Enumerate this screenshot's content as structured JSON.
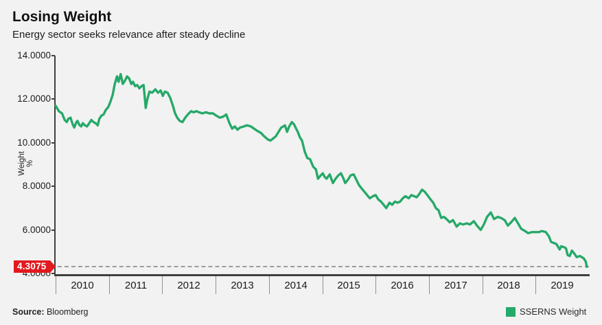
{
  "header": {
    "title": "Losing Weight",
    "subtitle": "Energy sector seeks relevance after steady decline"
  },
  "footer": {
    "source_label": "Source:",
    "source_value": "Bloomberg"
  },
  "legend": {
    "label": "SSERNS Weight"
  },
  "callout": {
    "value": "4.3075"
  },
  "colors": {
    "line": "#26a969",
    "callout_red": "#e2191f",
    "axis": "#3f3f3f",
    "background": "#f2f2f2",
    "dashed": "#9c9c9c"
  },
  "chart_data": {
    "type": "line",
    "title": "Losing Weight",
    "subtitle": "Energy sector seeks relevance after steady decline",
    "xlabel": "",
    "ylabel": "Weight %",
    "legend_position": "bottom-right",
    "grid": false,
    "x_range": [
      2010,
      2020
    ],
    "y_range": [
      4,
      14
    ],
    "y_ticks": [
      {
        "value": 14,
        "label": "14.0000"
      },
      {
        "value": 12,
        "label": "12.0000"
      },
      {
        "value": 10,
        "label": "10.0000"
      },
      {
        "value": 8,
        "label": "8.0000"
      },
      {
        "value": 6,
        "label": "6.0000"
      },
      {
        "value": 4,
        "label": "4.0000"
      }
    ],
    "x_ticks": [
      "2010",
      "2011",
      "2012",
      "2013",
      "2014",
      "2015",
      "2016",
      "2017",
      "2018",
      "2019"
    ],
    "last_value": 4.3075,
    "last_value_label": "4.3075",
    "series": [
      {
        "name": "SSERNS Weight",
        "points": [
          [
            2010.0,
            11.7
          ],
          [
            2010.06,
            11.45
          ],
          [
            2010.12,
            11.35
          ],
          [
            2010.17,
            11.05
          ],
          [
            2010.21,
            10.95
          ],
          [
            2010.24,
            11.1
          ],
          [
            2010.28,
            11.15
          ],
          [
            2010.32,
            10.85
          ],
          [
            2010.35,
            10.7
          ],
          [
            2010.39,
            10.95
          ],
          [
            2010.41,
            11.0
          ],
          [
            2010.45,
            10.8
          ],
          [
            2010.48,
            10.75
          ],
          [
            2010.51,
            10.9
          ],
          [
            2010.55,
            10.8
          ],
          [
            2010.59,
            10.75
          ],
          [
            2010.63,
            10.9
          ],
          [
            2010.67,
            11.05
          ],
          [
            2010.71,
            10.95
          ],
          [
            2010.75,
            10.9
          ],
          [
            2010.79,
            10.8
          ],
          [
            2010.82,
            11.1
          ],
          [
            2010.86,
            11.25
          ],
          [
            2010.9,
            11.3
          ],
          [
            2010.94,
            11.5
          ],
          [
            2010.99,
            11.65
          ],
          [
            2011.03,
            11.9
          ],
          [
            2011.07,
            12.2
          ],
          [
            2011.11,
            12.7
          ],
          [
            2011.15,
            13.05
          ],
          [
            2011.18,
            12.8
          ],
          [
            2011.22,
            13.15
          ],
          [
            2011.26,
            12.7
          ],
          [
            2011.3,
            12.85
          ],
          [
            2011.34,
            13.05
          ],
          [
            2011.38,
            12.95
          ],
          [
            2011.42,
            12.7
          ],
          [
            2011.45,
            12.8
          ],
          [
            2011.49,
            12.6
          ],
          [
            2011.53,
            12.65
          ],
          [
            2011.57,
            12.5
          ],
          [
            2011.61,
            12.6
          ],
          [
            2011.65,
            12.65
          ],
          [
            2011.69,
            11.6
          ],
          [
            2011.72,
            12.0
          ],
          [
            2011.76,
            12.35
          ],
          [
            2011.81,
            12.3
          ],
          [
            2011.87,
            12.45
          ],
          [
            2011.92,
            12.3
          ],
          [
            2011.97,
            12.4
          ],
          [
            2012.01,
            12.15
          ],
          [
            2012.05,
            12.35
          ],
          [
            2012.1,
            12.3
          ],
          [
            2012.15,
            12.05
          ],
          [
            2012.2,
            11.7
          ],
          [
            2012.24,
            11.35
          ],
          [
            2012.28,
            11.15
          ],
          [
            2012.33,
            11.0
          ],
          [
            2012.38,
            10.95
          ],
          [
            2012.43,
            11.15
          ],
          [
            2012.48,
            11.3
          ],
          [
            2012.54,
            11.45
          ],
          [
            2012.59,
            11.4
          ],
          [
            2012.64,
            11.45
          ],
          [
            2012.69,
            11.4
          ],
          [
            2012.75,
            11.35
          ],
          [
            2012.82,
            11.4
          ],
          [
            2012.88,
            11.35
          ],
          [
            2012.95,
            11.35
          ],
          [
            2013.01,
            11.25
          ],
          [
            2013.08,
            11.15
          ],
          [
            2013.14,
            11.2
          ],
          [
            2013.2,
            11.3
          ],
          [
            2013.26,
            10.9
          ],
          [
            2013.31,
            10.65
          ],
          [
            2013.36,
            10.75
          ],
          [
            2013.41,
            10.6
          ],
          [
            2013.46,
            10.7
          ],
          [
            2013.53,
            10.75
          ],
          [
            2013.59,
            10.8
          ],
          [
            2013.66,
            10.75
          ],
          [
            2013.72,
            10.65
          ],
          [
            2013.78,
            10.55
          ],
          [
            2013.85,
            10.45
          ],
          [
            2013.91,
            10.3
          ],
          [
            2013.98,
            10.15
          ],
          [
            2014.03,
            10.1
          ],
          [
            2014.08,
            10.2
          ],
          [
            2014.13,
            10.3
          ],
          [
            2014.18,
            10.5
          ],
          [
            2014.23,
            10.7
          ],
          [
            2014.27,
            10.75
          ],
          [
            2014.3,
            10.8
          ],
          [
            2014.34,
            10.5
          ],
          [
            2014.38,
            10.75
          ],
          [
            2014.43,
            10.95
          ],
          [
            2014.47,
            10.85
          ],
          [
            2014.5,
            10.7
          ],
          [
            2014.54,
            10.5
          ],
          [
            2014.58,
            10.25
          ],
          [
            2014.62,
            10.1
          ],
          [
            2014.67,
            9.6
          ],
          [
            2014.72,
            9.3
          ],
          [
            2014.77,
            9.25
          ],
          [
            2014.83,
            8.9
          ],
          [
            2014.88,
            8.78
          ],
          [
            2014.92,
            8.35
          ],
          [
            2014.97,
            8.5
          ],
          [
            2015.01,
            8.6
          ],
          [
            2015.04,
            8.45
          ],
          [
            2015.08,
            8.35
          ],
          [
            2015.14,
            8.55
          ],
          [
            2015.2,
            8.15
          ],
          [
            2015.25,
            8.35
          ],
          [
            2015.3,
            8.5
          ],
          [
            2015.35,
            8.6
          ],
          [
            2015.39,
            8.4
          ],
          [
            2015.43,
            8.15
          ],
          [
            2015.48,
            8.3
          ],
          [
            2015.53,
            8.5
          ],
          [
            2015.59,
            8.55
          ],
          [
            2015.64,
            8.3
          ],
          [
            2015.69,
            8.05
          ],
          [
            2015.74,
            7.9
          ],
          [
            2015.79,
            7.75
          ],
          [
            2015.84,
            7.6
          ],
          [
            2015.89,
            7.45
          ],
          [
            2015.95,
            7.55
          ],
          [
            2016.0,
            7.6
          ],
          [
            2016.05,
            7.4
          ],
          [
            2016.1,
            7.3
          ],
          [
            2016.15,
            7.15
          ],
          [
            2016.2,
            7.0
          ],
          [
            2016.26,
            7.25
          ],
          [
            2016.31,
            7.15
          ],
          [
            2016.36,
            7.3
          ],
          [
            2016.41,
            7.25
          ],
          [
            2016.46,
            7.3
          ],
          [
            2016.51,
            7.45
          ],
          [
            2016.56,
            7.55
          ],
          [
            2016.62,
            7.45
          ],
          [
            2016.67,
            7.6
          ],
          [
            2016.72,
            7.55
          ],
          [
            2016.77,
            7.5
          ],
          [
            2016.82,
            7.65
          ],
          [
            2016.87,
            7.85
          ],
          [
            2016.92,
            7.75
          ],
          [
            2016.97,
            7.6
          ],
          [
            2017.03,
            7.4
          ],
          [
            2017.08,
            7.25
          ],
          [
            2017.13,
            7.0
          ],
          [
            2017.18,
            6.9
          ],
          [
            2017.23,
            6.55
          ],
          [
            2017.28,
            6.6
          ],
          [
            2017.33,
            6.5
          ],
          [
            2017.39,
            6.35
          ],
          [
            2017.45,
            6.45
          ],
          [
            2017.52,
            6.15
          ],
          [
            2017.58,
            6.3
          ],
          [
            2017.64,
            6.25
          ],
          [
            2017.71,
            6.3
          ],
          [
            2017.77,
            6.25
          ],
          [
            2017.84,
            6.4
          ],
          [
            2017.9,
            6.2
          ],
          [
            2017.97,
            6.0
          ],
          [
            2018.03,
            6.25
          ],
          [
            2018.09,
            6.6
          ],
          [
            2018.16,
            6.8
          ],
          [
            2018.22,
            6.5
          ],
          [
            2018.29,
            6.6
          ],
          [
            2018.35,
            6.55
          ],
          [
            2018.42,
            6.45
          ],
          [
            2018.48,
            6.2
          ],
          [
            2018.54,
            6.35
          ],
          [
            2018.61,
            6.55
          ],
          [
            2018.67,
            6.3
          ],
          [
            2018.73,
            6.05
          ],
          [
            2018.8,
            5.95
          ],
          [
            2018.86,
            5.85
          ],
          [
            2018.93,
            5.9
          ],
          [
            2018.99,
            5.9
          ],
          [
            2019.06,
            5.9
          ],
          [
            2019.12,
            5.95
          ],
          [
            2019.19,
            5.9
          ],
          [
            2019.25,
            5.7
          ],
          [
            2019.29,
            5.45
          ],
          [
            2019.34,
            5.4
          ],
          [
            2019.39,
            5.35
          ],
          [
            2019.45,
            5.1
          ],
          [
            2019.48,
            5.25
          ],
          [
            2019.54,
            5.2
          ],
          [
            2019.57,
            5.15
          ],
          [
            2019.6,
            4.85
          ],
          [
            2019.64,
            4.8
          ],
          [
            2019.68,
            5.05
          ],
          [
            2019.73,
            4.9
          ],
          [
            2019.77,
            4.75
          ],
          [
            2019.83,
            4.8
          ],
          [
            2019.9,
            4.7
          ],
          [
            2019.94,
            4.55
          ],
          [
            2019.96,
            4.3075
          ]
        ]
      }
    ]
  }
}
